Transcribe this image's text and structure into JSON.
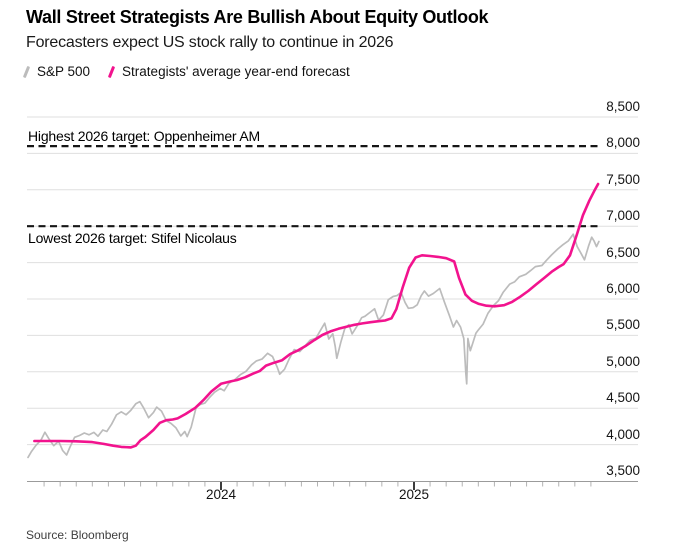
{
  "header": {
    "title": "Wall Street Strategists Are Bullish About Equity Outlook",
    "subtitle": "Forecasters expect US stock rally to continue in 2026"
  },
  "legend": [
    {
      "label": "S&P 500",
      "color": "#bcbcbc"
    },
    {
      "label": "Strategists' average year-end forecast",
      "color": "#f2138e"
    }
  ],
  "source": "Source: Bloomberg",
  "colors": {
    "sp500_line": "#bcbcbc",
    "forecast_line": "#f2138e",
    "target_dash": "#161616",
    "gridline": "#dfdfdf",
    "axis": "#9b9b9b",
    "minor_tick": "#b3b3b3",
    "major_tick": "#3c3c3c"
  },
  "chart_data": {
    "type": "line",
    "title": "Wall Street Strategists Are Bullish About Equity Outlook",
    "x_axis": {
      "start": "2023-01",
      "months_total": 35.5,
      "minor_tick_every_months": 1,
      "major_ticks": [
        {
          "label": "2024",
          "month": 12
        },
        {
          "label": "2025",
          "month": 24
        }
      ]
    },
    "y_axis": {
      "min": 3500,
      "max": 8500,
      "step": 500,
      "grid": true,
      "ticks": [
        {
          "value": 3500,
          "label": "3,500"
        },
        {
          "value": 4000,
          "label": "4,000"
        },
        {
          "value": 4500,
          "label": "4,500"
        },
        {
          "value": 5000,
          "label": "5,000"
        },
        {
          "value": 5500,
          "label": "5,500"
        },
        {
          "value": 6000,
          "label": "6,000"
        },
        {
          "value": 6500,
          "label": "6,500"
        },
        {
          "value": 7000,
          "label": "7,000"
        },
        {
          "value": 7500,
          "label": "7,500"
        },
        {
          "value": 8000,
          "label": "8,000"
        },
        {
          "value": 8500,
          "label": "8,500"
        }
      ]
    },
    "target_lines": [
      {
        "label": "Highest 2026 target: Oppenheimer AM",
        "value": 8100
      },
      {
        "label": "Lowest 2026 target: Stifel Nicolaus",
        "value": 7000
      }
    ],
    "series": [
      {
        "name": "S&P 500",
        "color": "#bcbcbc",
        "width": 1.7,
        "points": [
          [
            0,
            3824
          ],
          [
            0.2,
            3900
          ],
          [
            0.5,
            3990
          ],
          [
            0.8,
            4060
          ],
          [
            1.05,
            4170
          ],
          [
            1.3,
            4080
          ],
          [
            1.6,
            3985
          ],
          [
            1.9,
            4045
          ],
          [
            2.15,
            3920
          ],
          [
            2.4,
            3857
          ],
          [
            2.6,
            3960
          ],
          [
            2.9,
            4100
          ],
          [
            3.2,
            4125
          ],
          [
            3.5,
            4160
          ],
          [
            3.8,
            4135
          ],
          [
            4.1,
            4168
          ],
          [
            4.35,
            4115
          ],
          [
            4.65,
            4200
          ],
          [
            4.9,
            4180
          ],
          [
            5.2,
            4280
          ],
          [
            5.5,
            4410
          ],
          [
            5.8,
            4450
          ],
          [
            6.1,
            4410
          ],
          [
            6.4,
            4472
          ],
          [
            6.7,
            4560
          ],
          [
            6.95,
            4590
          ],
          [
            7.2,
            4500
          ],
          [
            7.5,
            4370
          ],
          [
            7.8,
            4440
          ],
          [
            8.0,
            4515
          ],
          [
            8.3,
            4460
          ],
          [
            8.6,
            4330
          ],
          [
            8.9,
            4290
          ],
          [
            9.2,
            4230
          ],
          [
            9.5,
            4120
          ],
          [
            9.75,
            4180
          ],
          [
            9.9,
            4110
          ],
          [
            10.15,
            4240
          ],
          [
            10.45,
            4510
          ],
          [
            10.7,
            4550
          ],
          [
            11.0,
            4570
          ],
          [
            11.3,
            4650
          ],
          [
            11.6,
            4720
          ],
          [
            11.95,
            4770
          ],
          [
            12.2,
            4740
          ],
          [
            12.5,
            4845
          ],
          [
            12.85,
            4890
          ],
          [
            13.2,
            4960
          ],
          [
            13.55,
            5005
          ],
          [
            13.9,
            5096
          ],
          [
            14.2,
            5150
          ],
          [
            14.55,
            5175
          ],
          [
            14.9,
            5254
          ],
          [
            15.2,
            5210
          ],
          [
            15.5,
            5060
          ],
          [
            15.65,
            4967
          ],
          [
            15.95,
            5035
          ],
          [
            16.25,
            5180
          ],
          [
            16.55,
            5305
          ],
          [
            16.9,
            5277
          ],
          [
            17.2,
            5350
          ],
          [
            17.55,
            5435
          ],
          [
            17.9,
            5460
          ],
          [
            18.2,
            5575
          ],
          [
            18.45,
            5667
          ],
          [
            18.7,
            5450
          ],
          [
            18.95,
            5522
          ],
          [
            19.1,
            5350
          ],
          [
            19.2,
            5186
          ],
          [
            19.45,
            5405
          ],
          [
            19.7,
            5595
          ],
          [
            19.95,
            5648
          ],
          [
            20.15,
            5520
          ],
          [
            20.45,
            5625
          ],
          [
            20.75,
            5745
          ],
          [
            20.95,
            5762
          ],
          [
            21.25,
            5815
          ],
          [
            21.55,
            5865
          ],
          [
            21.8,
            5710
          ],
          [
            22.1,
            5780
          ],
          [
            22.4,
            5990
          ],
          [
            22.7,
            6035
          ],
          [
            22.95,
            6047
          ],
          [
            23.2,
            6090
          ],
          [
            23.45,
            5950
          ],
          [
            23.65,
            5872
          ],
          [
            23.95,
            5882
          ],
          [
            24.2,
            5920
          ],
          [
            24.45,
            6045
          ],
          [
            24.65,
            6110
          ],
          [
            24.9,
            6040
          ],
          [
            25.2,
            6075
          ],
          [
            25.6,
            6144
          ],
          [
            25.9,
            5955
          ],
          [
            26.2,
            5772
          ],
          [
            26.45,
            5615
          ],
          [
            26.65,
            5705
          ],
          [
            26.9,
            5612
          ],
          [
            27.1,
            5456
          ],
          [
            27.22,
            4983
          ],
          [
            27.28,
            4835
          ],
          [
            27.35,
            5457
          ],
          [
            27.5,
            5290
          ],
          [
            27.65,
            5390
          ],
          [
            27.85,
            5530
          ],
          [
            27.98,
            5569
          ],
          [
            28.3,
            5655
          ],
          [
            28.6,
            5805
          ],
          [
            28.95,
            5912
          ],
          [
            29.25,
            5975
          ],
          [
            29.55,
            6095
          ],
          [
            29.95,
            6205
          ],
          [
            30.25,
            6235
          ],
          [
            30.55,
            6305
          ],
          [
            30.95,
            6339
          ],
          [
            31.25,
            6390
          ],
          [
            31.55,
            6445
          ],
          [
            31.95,
            6460
          ],
          [
            32.25,
            6535
          ],
          [
            32.55,
            6605
          ],
          [
            32.95,
            6688
          ],
          [
            33.25,
            6745
          ],
          [
            33.6,
            6800
          ],
          [
            33.9,
            6890
          ],
          [
            34.15,
            6720
          ],
          [
            34.35,
            6640
          ],
          [
            34.6,
            6538
          ],
          [
            34.85,
            6725
          ],
          [
            35.05,
            6849
          ],
          [
            35.2,
            6795
          ],
          [
            35.35,
            6720
          ],
          [
            35.5,
            6790
          ]
        ]
      },
      {
        "name": "Strategists' average year-end forecast",
        "color": "#f2138e",
        "width": 2.6,
        "points": [
          [
            0.4,
            4050
          ],
          [
            2,
            4050
          ],
          [
            3,
            4045
          ],
          [
            4,
            4035
          ],
          [
            4.7,
            4010
          ],
          [
            5.3,
            3985
          ],
          [
            5.8,
            3968
          ],
          [
            6.4,
            3962
          ],
          [
            6.7,
            3985
          ],
          [
            7.0,
            4060
          ],
          [
            7.3,
            4105
          ],
          [
            7.8,
            4200
          ],
          [
            8.2,
            4300
          ],
          [
            8.6,
            4335
          ],
          [
            9.0,
            4345
          ],
          [
            9.3,
            4360
          ],
          [
            9.8,
            4420
          ],
          [
            10.4,
            4505
          ],
          [
            10.9,
            4610
          ],
          [
            11.4,
            4730
          ],
          [
            12.0,
            4835
          ],
          [
            12.6,
            4868
          ],
          [
            13.0,
            4888
          ],
          [
            13.5,
            4925
          ],
          [
            14.0,
            4975
          ],
          [
            14.4,
            5010
          ],
          [
            14.8,
            5085
          ],
          [
            15.3,
            5125
          ],
          [
            15.8,
            5160
          ],
          [
            16.3,
            5245
          ],
          [
            16.8,
            5295
          ],
          [
            17.3,
            5360
          ],
          [
            17.8,
            5435
          ],
          [
            18.3,
            5505
          ],
          [
            18.8,
            5555
          ],
          [
            19.3,
            5590
          ],
          [
            19.8,
            5618
          ],
          [
            20.3,
            5645
          ],
          [
            20.8,
            5665
          ],
          [
            21.3,
            5682
          ],
          [
            21.8,
            5695
          ],
          [
            22.2,
            5705
          ],
          [
            22.6,
            5735
          ],
          [
            22.9,
            5860
          ],
          [
            23.3,
            6160
          ],
          [
            23.7,
            6430
          ],
          [
            24.1,
            6570
          ],
          [
            24.5,
            6600
          ],
          [
            25.0,
            6590
          ],
          [
            25.5,
            6578
          ],
          [
            26.0,
            6560
          ],
          [
            26.5,
            6515
          ],
          [
            26.8,
            6290
          ],
          [
            27.2,
            6060
          ],
          [
            27.6,
            5975
          ],
          [
            28.0,
            5935
          ],
          [
            28.5,
            5908
          ],
          [
            29.0,
            5900
          ],
          [
            29.6,
            5915
          ],
          [
            30.1,
            5960
          ],
          [
            30.6,
            6030
          ],
          [
            31.1,
            6110
          ],
          [
            31.6,
            6200
          ],
          [
            32.1,
            6290
          ],
          [
            32.6,
            6380
          ],
          [
            33.0,
            6440
          ],
          [
            33.3,
            6480
          ],
          [
            33.7,
            6600
          ],
          [
            34.0,
            6800
          ],
          [
            34.15,
            6900
          ],
          [
            34.5,
            7150
          ],
          [
            34.9,
            7350
          ],
          [
            35.2,
            7480
          ],
          [
            35.45,
            7580
          ]
        ]
      }
    ]
  }
}
